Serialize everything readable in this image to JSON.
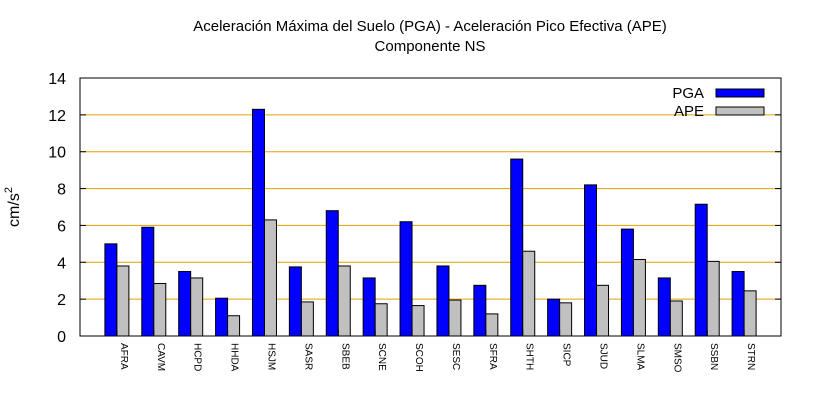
{
  "chart_data": {
    "type": "bar",
    "title": "Aceleración Máxima del Suelo (PGA) -  Aceleración Pico Efectiva (APE)",
    "subtitle": "Componente NS",
    "xlabel": "",
    "ylabel": "cm/s",
    "ylabel_superscript": "2",
    "ylim": [
      0,
      14
    ],
    "yticks": [
      0,
      2,
      4,
      6,
      8,
      10,
      12,
      14
    ],
    "grid": true,
    "legend_position": "top-right",
    "categories": [
      "AFRA",
      "CAVM",
      "HCPD",
      "HHDA",
      "HSJM",
      "SASR",
      "SBEB",
      "SCNE",
      "SCOH",
      "SESC",
      "SFRA",
      "SHTH",
      "SICP",
      "SJUD",
      "SLMA",
      "SMSO",
      "SSBN",
      "STRN"
    ],
    "series": [
      {
        "name": "PGA",
        "color": "#0000ff",
        "values": [
          5.0,
          5.9,
          3.5,
          2.05,
          12.3,
          3.75,
          6.8,
          3.15,
          6.2,
          3.8,
          2.75,
          9.6,
          2.0,
          8.2,
          5.8,
          3.15,
          7.15,
          3.5
        ]
      },
      {
        "name": "APE",
        "color": "#c0c0c0",
        "values": [
          3.8,
          2.85,
          3.15,
          1.1,
          6.3,
          1.85,
          3.8,
          1.75,
          1.65,
          1.95,
          1.2,
          4.6,
          1.8,
          2.75,
          4.15,
          1.9,
          4.05,
          2.45
        ]
      }
    ],
    "grid_color": "#e0a000"
  }
}
